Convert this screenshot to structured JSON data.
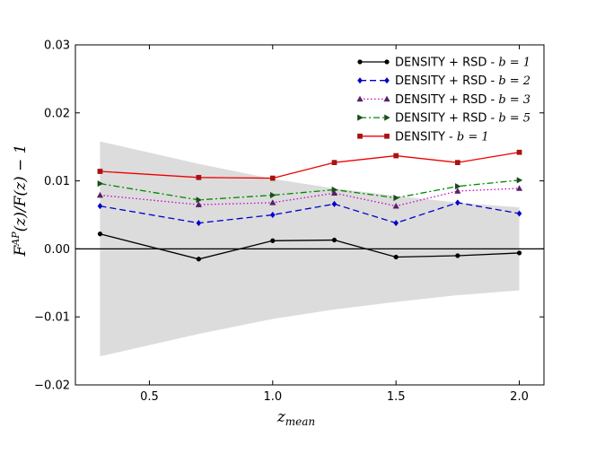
{
  "chart_data": {
    "type": "line",
    "xlabel": "z_mean",
    "ylabel": "F^AP(z)/F(z) − 1",
    "xlim": [
      0.2,
      2.1
    ],
    "ylim": [
      -0.02,
      0.03
    ],
    "x_ticks": [
      0.5,
      1.0,
      1.5,
      2.0
    ],
    "x_tick_labels": [
      "0.5",
      "1.0",
      "1.5",
      "2.0"
    ],
    "y_ticks": [
      -0.02,
      -0.01,
      0.0,
      0.01,
      0.02,
      0.03
    ],
    "y_tick_labels": [
      "−0.02",
      "−0.01",
      "0.00",
      "0.01",
      "0.02",
      "0.03"
    ],
    "x": [
      0.3,
      0.7,
      1.0,
      1.25,
      1.5,
      1.75,
      2.0
    ],
    "zero_line": 0.0,
    "band": {
      "x": [
        0.3,
        0.7,
        1.0,
        1.25,
        1.5,
        1.75,
        2.0
      ],
      "upper": [
        0.0158,
        0.0125,
        0.0103,
        0.0089,
        0.0078,
        0.0068,
        0.0061
      ],
      "lower": [
        -0.0158,
        -0.0125,
        -0.0103,
        -0.0089,
        -0.0078,
        -0.0068,
        -0.0061
      ],
      "color": "#dcdcdc"
    },
    "series": [
      {
        "name": "DENSITY + RSD - b = 1",
        "label_main": "DENSITY + RSD - ",
        "label_param": "b = 1",
        "values": [
          0.0022,
          -0.0015,
          0.0012,
          0.0013,
          -0.0012,
          -0.001,
          -0.0006
        ],
        "color": "#000000",
        "linestyle": "solid",
        "marker": "circle"
      },
      {
        "name": "DENSITY + RSD - b = 2",
        "label_main": "DENSITY + RSD - ",
        "label_param": "b = 2",
        "values": [
          0.0063,
          0.0038,
          0.005,
          0.0066,
          0.0038,
          0.0068,
          0.0052
        ],
        "color": "#0000cc",
        "linestyle": "dashed",
        "marker": "diamond"
      },
      {
        "name": "DENSITY + RSD - b = 3",
        "label_main": "DENSITY + RSD - ",
        "label_param": "b = 3",
        "values": [
          0.0079,
          0.0065,
          0.0068,
          0.0082,
          0.0063,
          0.0085,
          0.0089
        ],
        "color": "#cc00cc",
        "linestyle": "dotted",
        "marker": "triangle-up",
        "marker_color": "#552266"
      },
      {
        "name": "DENSITY + RSD - b = 5",
        "label_main": "DENSITY + RSD - ",
        "label_param": "b = 5",
        "values": [
          0.0096,
          0.0072,
          0.0079,
          0.0087,
          0.0075,
          0.0092,
          0.0101
        ],
        "color": "#008800",
        "linestyle": "dashdot",
        "marker": "triangle-right",
        "marker_color": "#1a4d1a"
      },
      {
        "name": "DENSITY - b = 1",
        "label_main": "DENSITY - ",
        "label_param": "b = 1",
        "values": [
          0.0114,
          0.0105,
          0.0104,
          0.0127,
          0.0137,
          0.0127,
          0.0142
        ],
        "color": "#ee0000",
        "linestyle": "solid",
        "marker": "square",
        "marker_color": "#aa1111"
      }
    ],
    "legend_position": "top-right"
  }
}
